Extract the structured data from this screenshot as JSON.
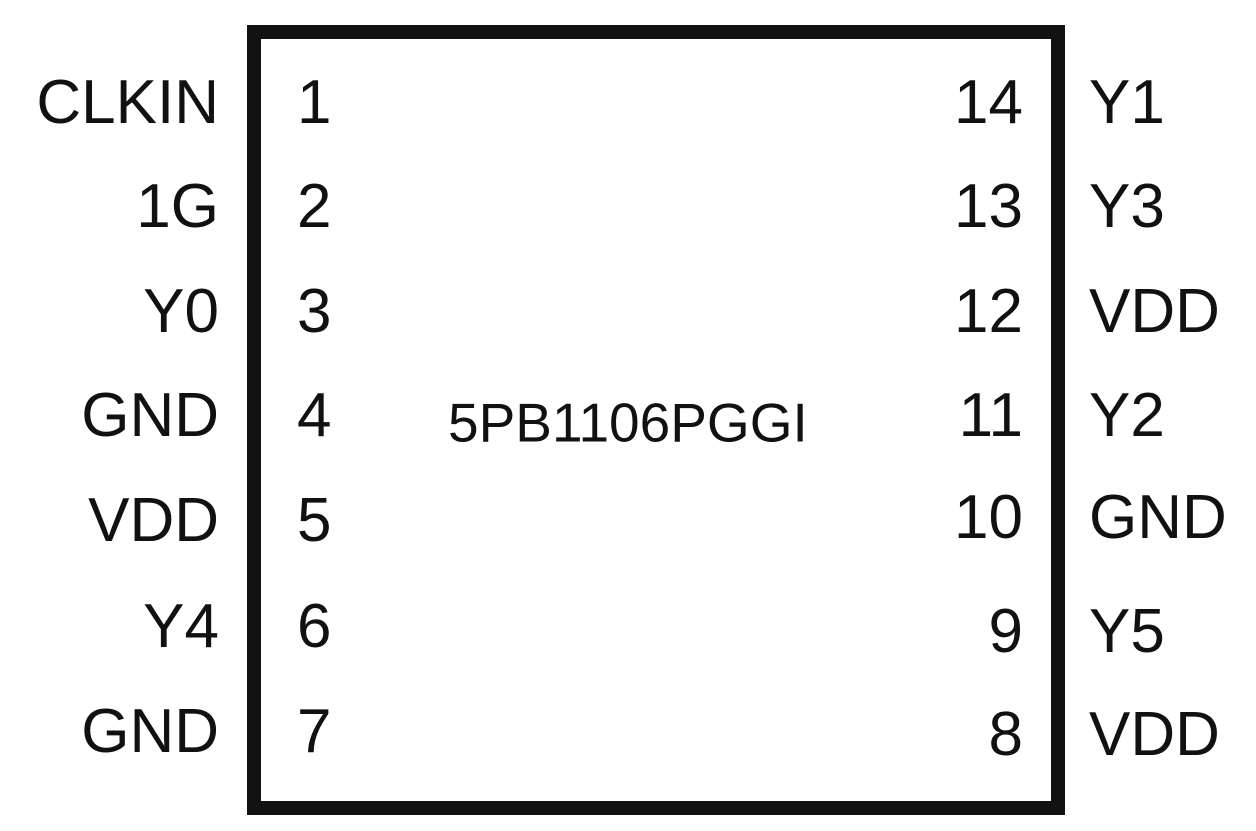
{
  "part_number": "5PB1106PGGI",
  "left_pins": [
    {
      "number": "1",
      "name": "CLKIN"
    },
    {
      "number": "2",
      "name": "1G"
    },
    {
      "number": "3",
      "name": "Y0"
    },
    {
      "number": "4",
      "name": "GND"
    },
    {
      "number": "5",
      "name": "VDD"
    },
    {
      "number": "6",
      "name": "Y4"
    },
    {
      "number": "7",
      "name": "GND"
    }
  ],
  "right_pins": [
    {
      "number": "14",
      "name": "Y1"
    },
    {
      "number": "13",
      "name": "Y3"
    },
    {
      "number": "12",
      "name": "VDD"
    },
    {
      "number": "11",
      "name": "Y2"
    },
    {
      "number": "10",
      "name": "GND"
    },
    {
      "number": "9",
      "name": "Y5"
    },
    {
      "number": "8",
      "name": "VDD"
    }
  ]
}
